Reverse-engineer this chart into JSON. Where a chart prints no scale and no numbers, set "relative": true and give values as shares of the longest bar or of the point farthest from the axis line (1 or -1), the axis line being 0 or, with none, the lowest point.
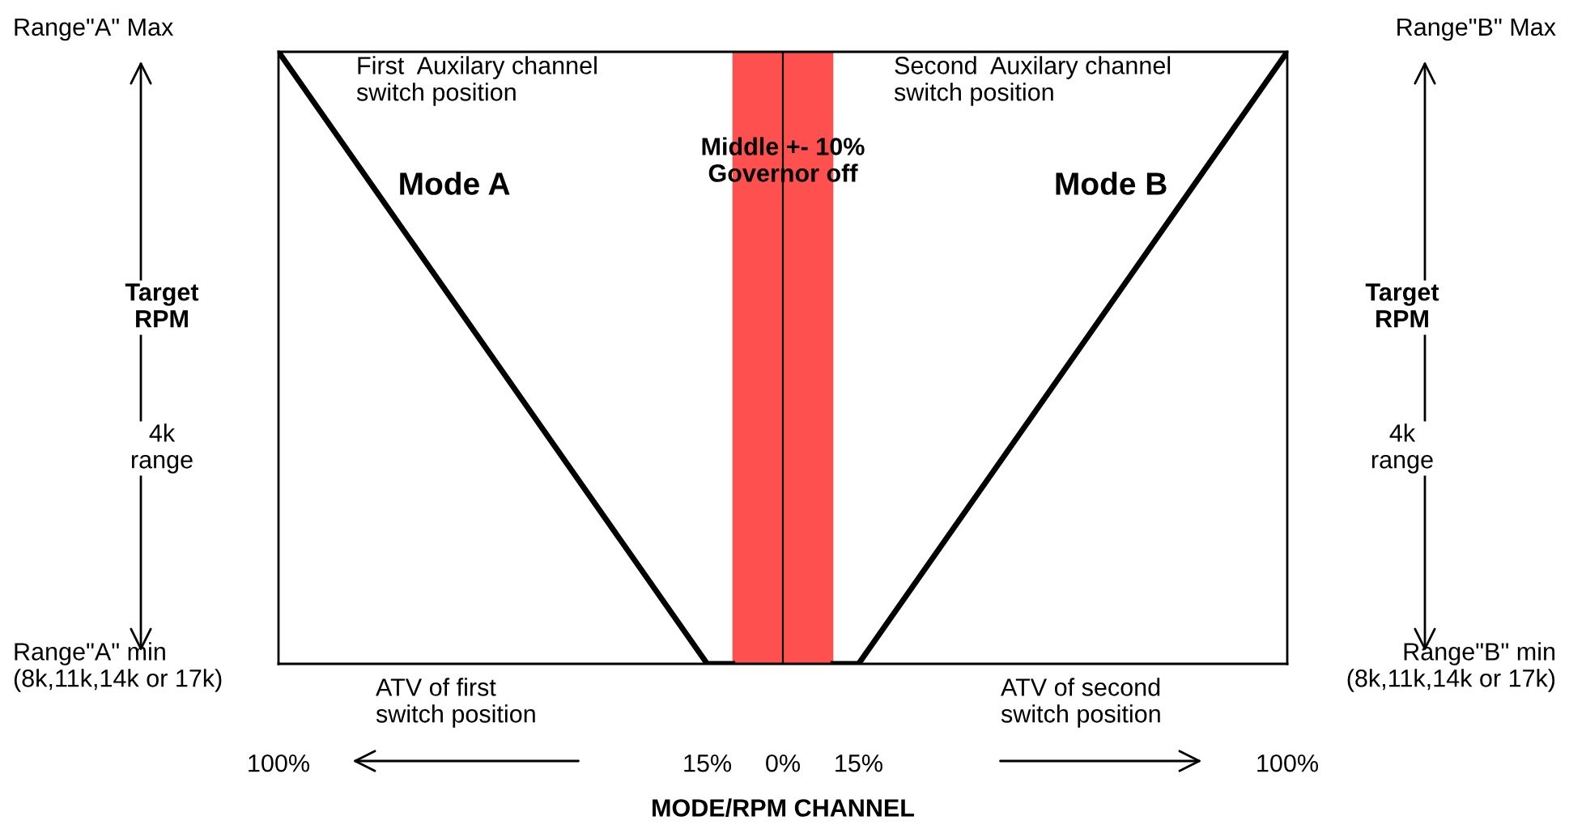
{
  "chart_data": {
    "type": "line",
    "relative": true,
    "xlabel": "MODE/RPM CHANNEL",
    "xlim": [
      -100,
      100
    ],
    "xticks": [
      {
        "value": -100,
        "label": "100%"
      },
      {
        "value": -15,
        "label": "15%"
      },
      {
        "value": 0,
        "label": "0%"
      },
      {
        "value": 15,
        "label": "15%"
      },
      {
        "value": 100,
        "label": "100%"
      }
    ],
    "series": [
      {
        "name": "Mode A",
        "color": "#000000",
        "x": [
          -100,
          -15,
          -10
        ],
        "values": [
          1,
          0,
          0
        ]
      },
      {
        "name": "Mode B",
        "color": "#000000",
        "x": [
          10,
          15,
          100
        ],
        "values": [
          0,
          0,
          1
        ]
      }
    ],
    "bands": [
      {
        "axis": "x",
        "from": -10,
        "to": 10,
        "label": "Middle +- 10%\nGovernor off",
        "color": "#ff5050"
      }
    ],
    "ref_lines": [
      {
        "axis": "x",
        "value": 0,
        "color": "#000000"
      }
    ],
    "grid": false,
    "marker": "none",
    "line_style": "solid",
    "annotations": [
      "Range\"A\" Max",
      "First  Auxilary channel\nswitch position",
      "Second  Auxilary channel\nswitch position",
      "Range\"B\" Max",
      "Target\nRPM",
      "4k\nrange",
      "Target\nRPM",
      "4k\nrange",
      "Range\"A\" min\n(8k,11k,14k or 17k)",
      "Range\"B\" min\n(8k,11k,14k or 17k)",
      "ATV of first\nswitch position",
      "ATV of second\nswitch position"
    ]
  }
}
